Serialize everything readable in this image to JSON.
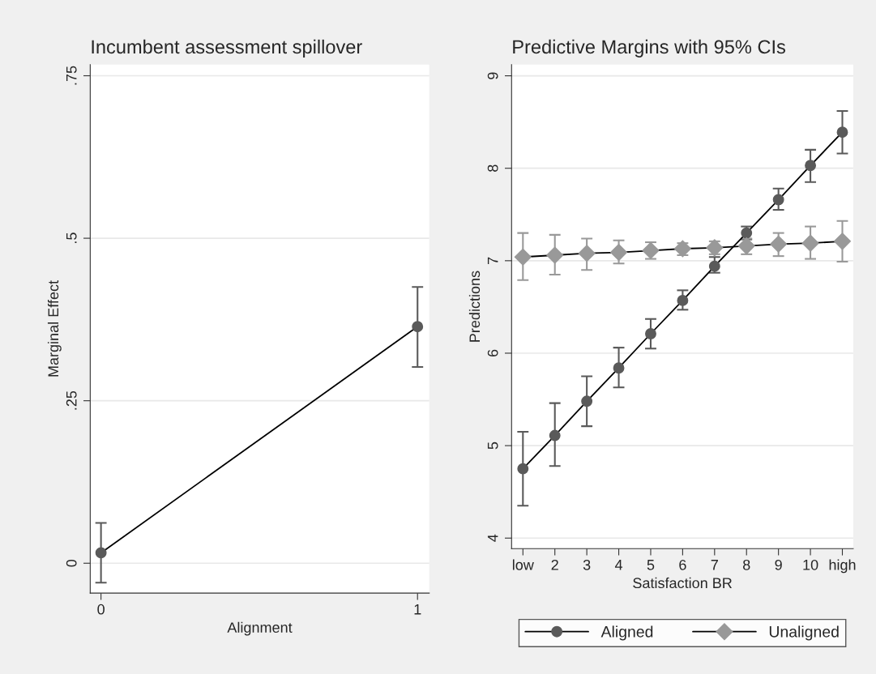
{
  "chart_data": [
    {
      "type": "line",
      "title": "Incumbent assessment spillover",
      "xlabel": "Alignment",
      "ylabel": "Marginal Effect",
      "x": [
        0,
        1
      ],
      "xlim": [
        -0.034,
        1.037
      ],
      "xticks": [
        0,
        1
      ],
      "ylim": [
        -0.046,
        0.767
      ],
      "yticks": [
        0,
        {
          "value": 0.25,
          "label": ".25"
        },
        {
          "value": 0.5,
          "label": ".5"
        },
        {
          "value": 0.75,
          "label": ".75"
        }
      ],
      "grid": "y",
      "marker": "circle",
      "series": [
        {
          "color": "#5a5a5a",
          "values": [
            0.016,
            0.364
          ],
          "errors": [
            [
              -0.03,
              0.062
            ],
            [
              0.302,
              0.425
            ]
          ]
        }
      ]
    },
    {
      "type": "line",
      "title": "Predictive Margins with 95% CIs",
      "xlabel": "Satisfaction BR",
      "ylabel": "Predictions",
      "categories": [
        "low",
        "2",
        "3",
        "4",
        "5",
        "6",
        "7",
        "8",
        "9",
        "10",
        "high"
      ],
      "ylim": [
        3.886,
        9.12
      ],
      "yticks": [
        4,
        5,
        6,
        7,
        8,
        9
      ],
      "grid": "y",
      "legend": "bottom",
      "series": [
        {
          "name": "Aligned",
          "color": "#5a5a5a",
          "marker": "circle",
          "values": [
            4.75,
            5.11,
            5.48,
            5.84,
            6.21,
            6.57,
            6.94,
            7.3,
            7.66,
            8.03,
            8.39
          ],
          "errors": [
            [
              4.35,
              5.15
            ],
            [
              4.78,
              5.46
            ],
            [
              5.21,
              5.75
            ],
            [
              5.63,
              6.06
            ],
            [
              6.05,
              6.37
            ],
            [
              6.47,
              6.68
            ],
            [
              6.87,
              7.04
            ],
            [
              7.23,
              7.37
            ],
            [
              7.55,
              7.78
            ],
            [
              7.85,
              8.2
            ],
            [
              8.16,
              8.62
            ]
          ]
        },
        {
          "name": "Unaligned",
          "color": "#999999",
          "marker": "diamond",
          "values": [
            7.04,
            7.06,
            7.08,
            7.09,
            7.11,
            7.13,
            7.14,
            7.16,
            7.18,
            7.19,
            7.21
          ],
          "errors": [
            [
              6.79,
              7.3
            ],
            [
              6.85,
              7.28
            ],
            [
              6.9,
              7.24
            ],
            [
              6.97,
              7.22
            ],
            [
              7.02,
              7.2
            ],
            [
              7.06,
              7.19
            ],
            [
              7.07,
              7.21
            ],
            [
              7.07,
              7.24
            ],
            [
              7.05,
              7.3
            ],
            [
              7.02,
              7.37
            ],
            [
              6.99,
              7.43
            ]
          ]
        }
      ]
    }
  ]
}
